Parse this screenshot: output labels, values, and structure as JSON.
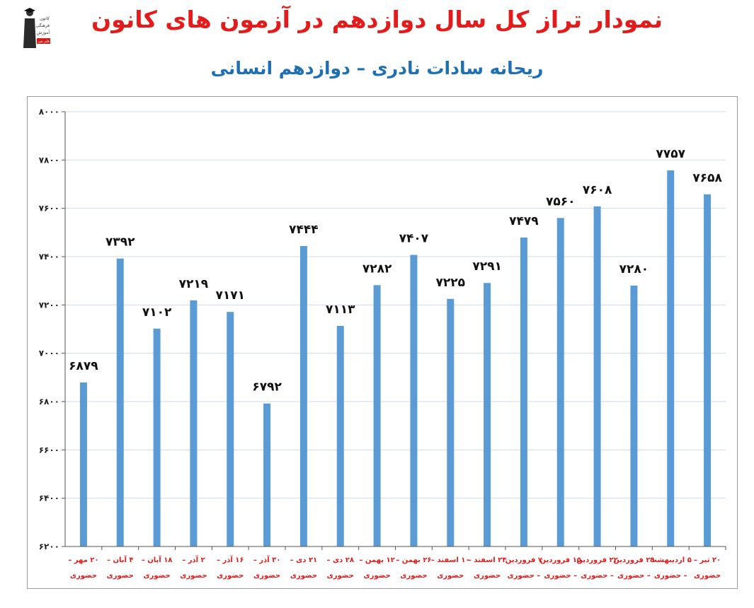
{
  "header": {
    "title": "نمودار تراز کل سال دوازدهم در آزمون های کانون",
    "subtitle": "ریحانه سادات نادری – دوازدهم انسانی"
  },
  "logo": {
    "lines": [
      "کانون",
      "فرهنگی",
      "آموزش"
    ],
    "badge": "قلم چی"
  },
  "colors": {
    "bar": "#5b9bd5",
    "title": "#e31b1b",
    "subtitle": "#1f6fb5",
    "category": "#e31b1b",
    "grid": "#d0d8e8"
  },
  "chart_data": {
    "type": "bar",
    "title": "نمودار تراز کل سال دوازدهم در آزمون های کانون",
    "subtitle": "ریحانه سادات نادری – دوازدهم انسانی",
    "xlabel": "",
    "ylabel": "",
    "ylim": [
      6200,
      8000
    ],
    "yticks": [
      6200,
      6400,
      6600,
      6800,
      7000,
      7200,
      7400,
      7600,
      7800,
      8000
    ],
    "ytick_labels": [
      "۶۲۰۰",
      "۶۴۰۰",
      "۶۶۰۰",
      "۶۸۰۰",
      "۷۰۰۰",
      "۷۲۰۰",
      "۷۴۰۰",
      "۷۶۰۰",
      "۷۸۰۰",
      "۸۰۰۰"
    ],
    "grid": true,
    "legend": "none",
    "categories": [
      [
        "۲۰ مهر –",
        "حضوری"
      ],
      [
        "۴ آبان –",
        "حضوری"
      ],
      [
        "۱۸ آبان –",
        "حضوری"
      ],
      [
        "۲ آذر –",
        "حضوری"
      ],
      [
        "۱۶ آذر –",
        "حضوری"
      ],
      [
        "۳۰ آذر –",
        "حضوری"
      ],
      [
        "۲۱ دی –",
        "حضوری"
      ],
      [
        "۲۸ دی –",
        "حضوری"
      ],
      [
        "۱۲ بهمن –",
        "حضوری"
      ],
      [
        "۲۶ بهمن –",
        "حضوری"
      ],
      [
        "۱۰ اسفند –",
        "حضوری"
      ],
      [
        "۲۴ اسفند –",
        "حضوری"
      ],
      [
        "۷ فروردین",
        "– حضوری"
      ],
      [
        "۱۵ فروردین",
        "– حضوری"
      ],
      [
        "۲۲ فروردین",
        "– حضوری"
      ],
      [
        "۲۹ فروردین",
        "– حضوری"
      ],
      [
        "۵ اردیبهشت",
        "– حضوری"
      ],
      [
        "۲۰ تیر –",
        "حضوری"
      ]
    ],
    "values": [
      6879,
      7392,
      7102,
      7219,
      7171,
      6792,
      7444,
      7113,
      7282,
      7407,
      7225,
      7291,
      7479,
      7560,
      7608,
      7280,
      7757,
      7658
    ],
    "value_labels": [
      "۶۸۷۹",
      "۷۳۹۲",
      "۷۱۰۲",
      "۷۲۱۹",
      "۷۱۷۱",
      "۶۷۹۲",
      "۷۴۴۴",
      "۷۱۱۳",
      "۷۲۸۲",
      "۷۴۰۷",
      "۷۲۲۵",
      "۷۲۹۱",
      "۷۴۷۹",
      "۷۵۶۰",
      "۷۶۰۸",
      "۷۲۸۰",
      "۷۷۵۷",
      "۷۶۵۸"
    ]
  }
}
